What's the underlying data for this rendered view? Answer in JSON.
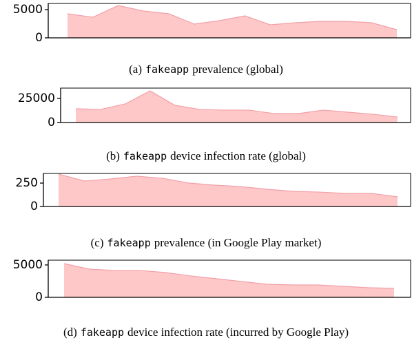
{
  "chart_data": [
    {
      "type": "area",
      "label": "(a)",
      "app": "fakeapp",
      "caption": "prevalence (global)",
      "categories": [
        null,
        null,
        null,
        null,
        null,
        null,
        null,
        null,
        null,
        null,
        null,
        null,
        null,
        null
      ],
      "values": [
        4270,
        3660,
        5730,
        4760,
        4270,
        2440,
        3050,
        3900,
        2320,
        2680,
        2930,
        2930,
        2680,
        1460
      ],
      "color": "#ffc8c8",
      "line_color": "#f0a0a8",
      "ylim": [
        0,
        6100
      ],
      "yticks": [
        0,
        5000
      ]
    },
    {
      "type": "area",
      "label": "(b)",
      "app": "fakeapp",
      "caption": "device infection rate (global)",
      "categories": [
        null,
        null,
        null,
        null,
        null,
        null,
        null,
        null,
        null,
        null,
        null,
        null,
        null,
        null
      ],
      "values": [
        14300,
        13600,
        19300,
        32900,
        17900,
        13600,
        12900,
        12900,
        9300,
        9300,
        12900,
        10700,
        8600,
        5700
      ],
      "color": "#ffc8c8",
      "line_color": "#f0a0a8",
      "ylim": [
        0,
        35700
      ],
      "yticks": [
        0,
        25000
      ]
    },
    {
      "type": "area",
      "label": "(c)",
      "app": "fakeapp",
      "caption": "prevalence (in Google Play market)",
      "categories": [
        null,
        null,
        null,
        null,
        null,
        null,
        null,
        null,
        null,
        null,
        null,
        null,
        null,
        null
      ],
      "values": [
        346,
        272,
        294,
        324,
        301,
        250,
        228,
        213,
        184,
        162,
        154,
        140,
        140,
        103
      ],
      "color": "#ffc8c8",
      "line_color": "#f0a0a8",
      "ylim": [
        0,
        353
      ],
      "yticks": [
        0,
        250
      ]
    },
    {
      "type": "area",
      "label": "(d)",
      "app": "fakeapp",
      "caption": "device infection rate (incurred by Google Play)",
      "categories": [
        null,
        null,
        null,
        null,
        null,
        null,
        null,
        null,
        null,
        null,
        null,
        null,
        null,
        null
      ],
      "values": [
        5210,
        4360,
        4150,
        4150,
        3830,
        3300,
        2870,
        2450,
        2020,
        1910,
        1910,
        1700,
        1490,
        1380
      ],
      "color": "#ffc8c8",
      "line_color": "#f0a0a8",
      "ylim": [
        0,
        5740
      ],
      "yticks": [
        0,
        5000
      ]
    }
  ]
}
